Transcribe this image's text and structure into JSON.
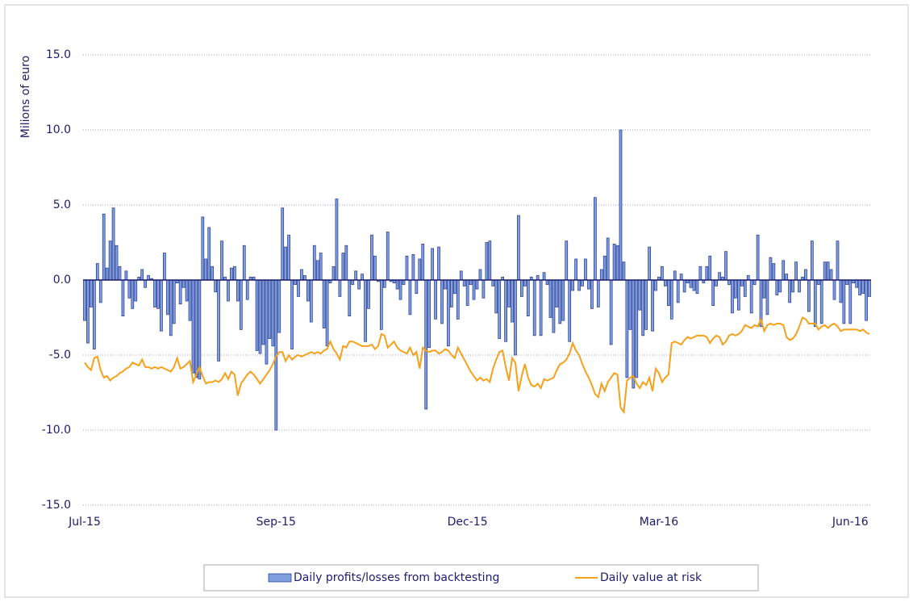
{
  "chart_data": {
    "type": "bar",
    "y_label": "Milions of euro",
    "ylim": [
      -15,
      15
    ],
    "yticks": [
      {
        "value": -15,
        "label": "-15.0"
      },
      {
        "value": -10,
        "label": "-10.0"
      },
      {
        "value": -5,
        "label": "-5.0"
      },
      {
        "value": 0,
        "label": "0.0"
      },
      {
        "value": 5,
        "label": "5.0"
      },
      {
        "value": 10,
        "label": "10.0"
      },
      {
        "value": 15,
        "label": "15.0"
      }
    ],
    "grid": true,
    "legend": "bottom",
    "categories": [
      "Jul-15",
      null,
      null,
      null,
      null,
      null,
      null,
      null,
      null,
      null,
      null,
      null,
      null,
      null,
      null,
      null,
      null,
      null,
      null,
      null,
      null,
      null,
      null,
      null,
      null,
      null,
      null,
      null,
      null,
      null,
      null,
      null,
      null,
      null,
      null,
      null,
      null,
      null,
      null,
      null,
      null,
      null,
      null,
      null,
      null,
      null,
      null,
      null,
      null,
      null,
      null,
      null,
      null,
      null,
      null,
      null,
      null,
      null,
      null,
      null,
      "Sep-15",
      null,
      null,
      null,
      null,
      null,
      null,
      null,
      null,
      null,
      null,
      null,
      null,
      null,
      null,
      null,
      null,
      null,
      null,
      null,
      null,
      null,
      null,
      null,
      null,
      null,
      null,
      null,
      null,
      null,
      null,
      null,
      null,
      null,
      null,
      null,
      null,
      null,
      null,
      null,
      null,
      null,
      null,
      null,
      null,
      null,
      null,
      null,
      null,
      null,
      null,
      null,
      null,
      null,
      null,
      null,
      null,
      null,
      null,
      null,
      "Dec-15",
      null,
      null,
      null,
      null,
      null,
      null,
      null,
      null,
      null,
      null,
      null,
      null,
      null,
      null,
      null,
      null,
      null,
      null,
      null,
      null,
      null,
      null,
      null,
      null,
      null,
      null,
      null,
      null,
      null,
      null,
      null,
      null,
      null,
      null,
      null,
      null,
      null,
      null,
      null,
      null,
      null,
      null,
      null,
      null,
      null,
      null,
      null,
      null,
      null,
      null,
      null,
      null,
      null,
      null,
      null,
      null,
      null,
      null,
      null,
      "Mar-16",
      null,
      null,
      null,
      null,
      null,
      null,
      null,
      null,
      null,
      null,
      null,
      null,
      null,
      null,
      null,
      null,
      null,
      null,
      null,
      null,
      null,
      null,
      null,
      null,
      null,
      null,
      null,
      null,
      null,
      null,
      null,
      null,
      null,
      null,
      null,
      null,
      null,
      null,
      null,
      null,
      null,
      null,
      null,
      null,
      null,
      null,
      null,
      null,
      null,
      null,
      null,
      null,
      null,
      null,
      null,
      null,
      null,
      null,
      null,
      "Jun-16",
      null,
      null,
      null,
      null,
      null,
      null
    ],
    "series": [
      {
        "name": "Daily profits/losses from backtesting",
        "type": "bar",
        "color": "#7f9fe0",
        "stroke": "#23348a",
        "values": [
          -2.7,
          -4.2,
          -1.8,
          -4.6,
          1.1,
          -1.5,
          4.4,
          0.8,
          2.6,
          4.8,
          2.3,
          0.9,
          -2.4,
          0.6,
          -1.2,
          -1.9,
          -1.4,
          0.2,
          0.7,
          -0.5,
          0.3,
          0.1,
          -1.8,
          -1.9,
          -3.4,
          1.8,
          -2.3,
          -3.7,
          -2.9,
          -0.2,
          -1.6,
          -0.5,
          -1.4,
          -2.7,
          -6.2,
          -6.5,
          -6.6,
          4.2,
          1.4,
          3.5,
          0.9,
          -0.8,
          -5.4,
          2.6,
          0.2,
          -1.4,
          0.8,
          0.9,
          -1.4,
          -3.3,
          2.3,
          -1.3,
          0.2,
          0.2,
          -4.7,
          -4.9,
          -4.3,
          -5.6,
          -3.9,
          -4.4,
          -10.0,
          -3.5,
          4.8,
          2.2,
          3.0,
          -4.6,
          -0.3,
          -1.1,
          0.7,
          0.3,
          -1.4,
          -2.8,
          2.3,
          1.3,
          1.8,
          -3.2,
          -4.4,
          -0.2,
          0.9,
          5.4,
          -1.1,
          1.8,
          2.3,
          -2.4,
          -0.3,
          0.6,
          -0.6,
          0.4,
          -4.1,
          -1.9,
          3.0,
          1.6,
          -0.1,
          -3.3,
          -0.5,
          3.2,
          -0.1,
          -0.2,
          -0.6,
          -1.3,
          -0.3,
          1.6,
          -2.3,
          1.7,
          -0.9,
          1.4,
          2.4,
          -8.6,
          -4.5,
          2.1,
          -2.6,
          2.2,
          -2.9,
          -0.6,
          -4.4,
          -1.8,
          -0.9,
          -2.6,
          0.6,
          -0.4,
          -1.7,
          -0.3,
          -1.3,
          -0.6,
          0.7,
          -1.2,
          2.5,
          2.6,
          -0.4,
          -2.2,
          -3.9,
          0.2,
          -4.1,
          -1.8,
          -2.8,
          -5.0,
          4.3,
          -1.1,
          -0.4,
          -2.4,
          0.2,
          -3.7,
          0.3,
          -3.7,
          0.5,
          -0.3,
          -2.5,
          -3.5,
          -1.8,
          -2.9,
          -2.7,
          2.6,
          -4.1,
          -0.7,
          1.4,
          -0.7,
          -0.4,
          1.4,
          -0.6,
          -1.9,
          5.5,
          -1.8,
          0.7,
          1.6,
          2.8,
          -4.3,
          2.4,
          2.3,
          10.0,
          1.2,
          -6.5,
          -3.3,
          -7.2,
          -6.5,
          -2.0,
          -3.7,
          -3.3,
          2.2,
          -3.4,
          -0.7,
          0.2,
          0.9,
          -0.4,
          -1.7,
          -2.6,
          0.6,
          -1.5,
          0.4,
          -0.8,
          -0.2,
          -0.5,
          -0.7,
          -0.9,
          0.9,
          -0.2,
          0.9,
          1.6,
          -1.7,
          -0.4,
          0.5,
          0.2,
          1.9,
          -0.3,
          -2.2,
          -1.2,
          -2.0,
          -0.4,
          -1.1,
          0.3,
          -2.2,
          -0.3,
          3.0,
          -3.1,
          -1.2,
          -2.3,
          1.5,
          1.1,
          -1.0,
          -0.8,
          1.3,
          0.4,
          -1.5,
          -0.8,
          1.2,
          -0.8,
          0.2,
          0.7,
          -2.1,
          2.6,
          -3.1,
          -0.3,
          -2.9,
          1.2,
          1.2,
          0.7,
          -1.3,
          2.6,
          -1.5,
          -2.9,
          -0.3,
          -2.9,
          -0.2,
          -0.5,
          -1.0,
          -0.9,
          -2.7,
          -1.1
        ]
      },
      {
        "name": "Daily value at risk",
        "type": "line",
        "color": "#f5a11c",
        "values": [
          -5.5,
          -5.8,
          -6.0,
          -5.2,
          -5.1,
          -6.0,
          -6.5,
          -6.4,
          -6.7,
          -6.5,
          -6.4,
          -6.2,
          -6.1,
          -5.9,
          -5.8,
          -5.5,
          -5.6,
          -5.7,
          -5.3,
          -5.8,
          -5.8,
          -5.9,
          -5.8,
          -5.9,
          -5.8,
          -5.9,
          -6.0,
          -6.1,
          -5.8,
          -5.2,
          -5.9,
          -5.8,
          -5.6,
          -5.4,
          -6.8,
          -6.3,
          -5.8,
          -6.4,
          -6.9,
          -6.8,
          -6.8,
          -6.7,
          -6.8,
          -6.6,
          -6.2,
          -6.6,
          -6.1,
          -6.3,
          -7.7,
          -6.9,
          -6.6,
          -6.3,
          -6.1,
          -6.3,
          -6.6,
          -6.9,
          -6.6,
          -6.3,
          -6.0,
          -5.6,
          -5.1,
          -4.8,
          -4.8,
          -5.4,
          -5.0,
          -5.3,
          -5.1,
          -5.0,
          -5.1,
          -5.0,
          -4.9,
          -4.8,
          -4.9,
          -4.8,
          -4.9,
          -4.7,
          -4.6,
          -4.1,
          -4.6,
          -4.9,
          -5.3,
          -4.4,
          -4.5,
          -4.1,
          -4.1,
          -4.2,
          -4.3,
          -4.4,
          -4.4,
          -4.4,
          -4.3,
          -4.6,
          -4.4,
          -3.6,
          -3.7,
          -4.5,
          -4.3,
          -4.1,
          -4.5,
          -4.7,
          -4.8,
          -4.9,
          -4.5,
          -5.0,
          -4.8,
          -5.9,
          -4.5,
          -4.7,
          -4.8,
          -4.7,
          -4.7,
          -4.9,
          -4.8,
          -4.6,
          -4.7,
          -5.0,
          -5.2,
          -4.5,
          -4.9,
          -5.3,
          -5.7,
          -6.1,
          -6.4,
          -6.7,
          -6.5,
          -6.7,
          -6.6,
          -6.8,
          -5.9,
          -5.3,
          -4.8,
          -4.7,
          -5.8,
          -6.7,
          -5.2,
          -5.5,
          -7.4,
          -6.4,
          -5.6,
          -6.5,
          -7.0,
          -7.1,
          -6.9,
          -7.2,
          -6.6,
          -6.7,
          -6.6,
          -6.5,
          -6.0,
          -5.6,
          -5.5,
          -5.3,
          -4.9,
          -4.2,
          -4.7,
          -5.0,
          -5.6,
          -6.1,
          -6.5,
          -7.0,
          -7.6,
          -7.8,
          -6.9,
          -7.4,
          -6.8,
          -6.5,
          -6.2,
          -6.3,
          -8.5,
          -8.8,
          -6.7,
          -6.5,
          -6.4,
          -6.9,
          -7.2,
          -6.8,
          -7.0,
          -6.5,
          -7.4,
          -5.9,
          -6.2,
          -6.8,
          -6.5,
          -6.3,
          -4.2,
          -4.1,
          -4.2,
          -4.3,
          -4.0,
          -3.8,
          -3.9,
          -3.8,
          -3.7,
          -3.7,
          -3.7,
          -3.8,
          -4.2,
          -3.9,
          -3.7,
          -3.8,
          -4.3,
          -4.1,
          -3.7,
          -3.6,
          -3.7,
          -3.6,
          -3.4,
          -3.0,
          -3.1,
          -3.2,
          -3.0,
          -3.1,
          -2.6,
          -3.4,
          -3.0,
          -2.9,
          -3.0,
          -2.9,
          -2.9,
          -3.0,
          -3.8,
          -4.0,
          -3.9,
          -3.6,
          -3.1,
          -2.5,
          -2.6,
          -2.9,
          -2.9,
          -2.9,
          -3.3,
          -3.1,
          -3.0,
          -3.2,
          -3.0,
          -2.9,
          -3.1,
          -3.4,
          -3.3,
          -3.3,
          -3.3,
          -3.3,
          -3.3,
          -3.4,
          -3.3,
          -3.5,
          -3.6
        ]
      }
    ]
  }
}
